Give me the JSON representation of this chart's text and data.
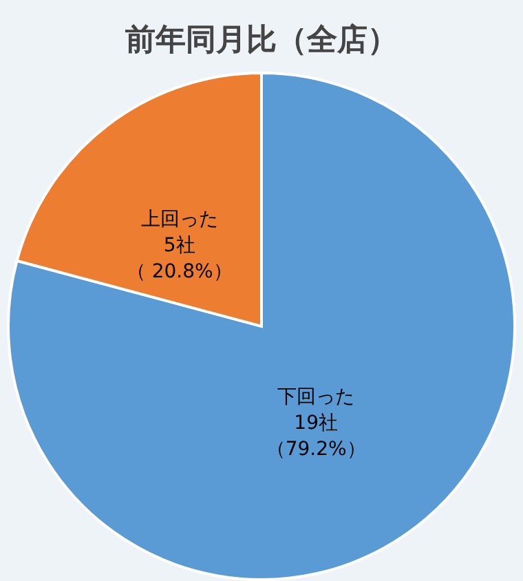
{
  "chart_data": {
    "type": "pie",
    "title": "前年同月比（全店）",
    "categories": [
      "下回った",
      "上回った"
    ],
    "values": [
      19,
      5
    ],
    "colors": [
      "#5b9bd5",
      "#ed7d31"
    ],
    "value_labels": [
      "19社（79.2%）",
      "5社（ 20.8%）"
    ]
  }
}
